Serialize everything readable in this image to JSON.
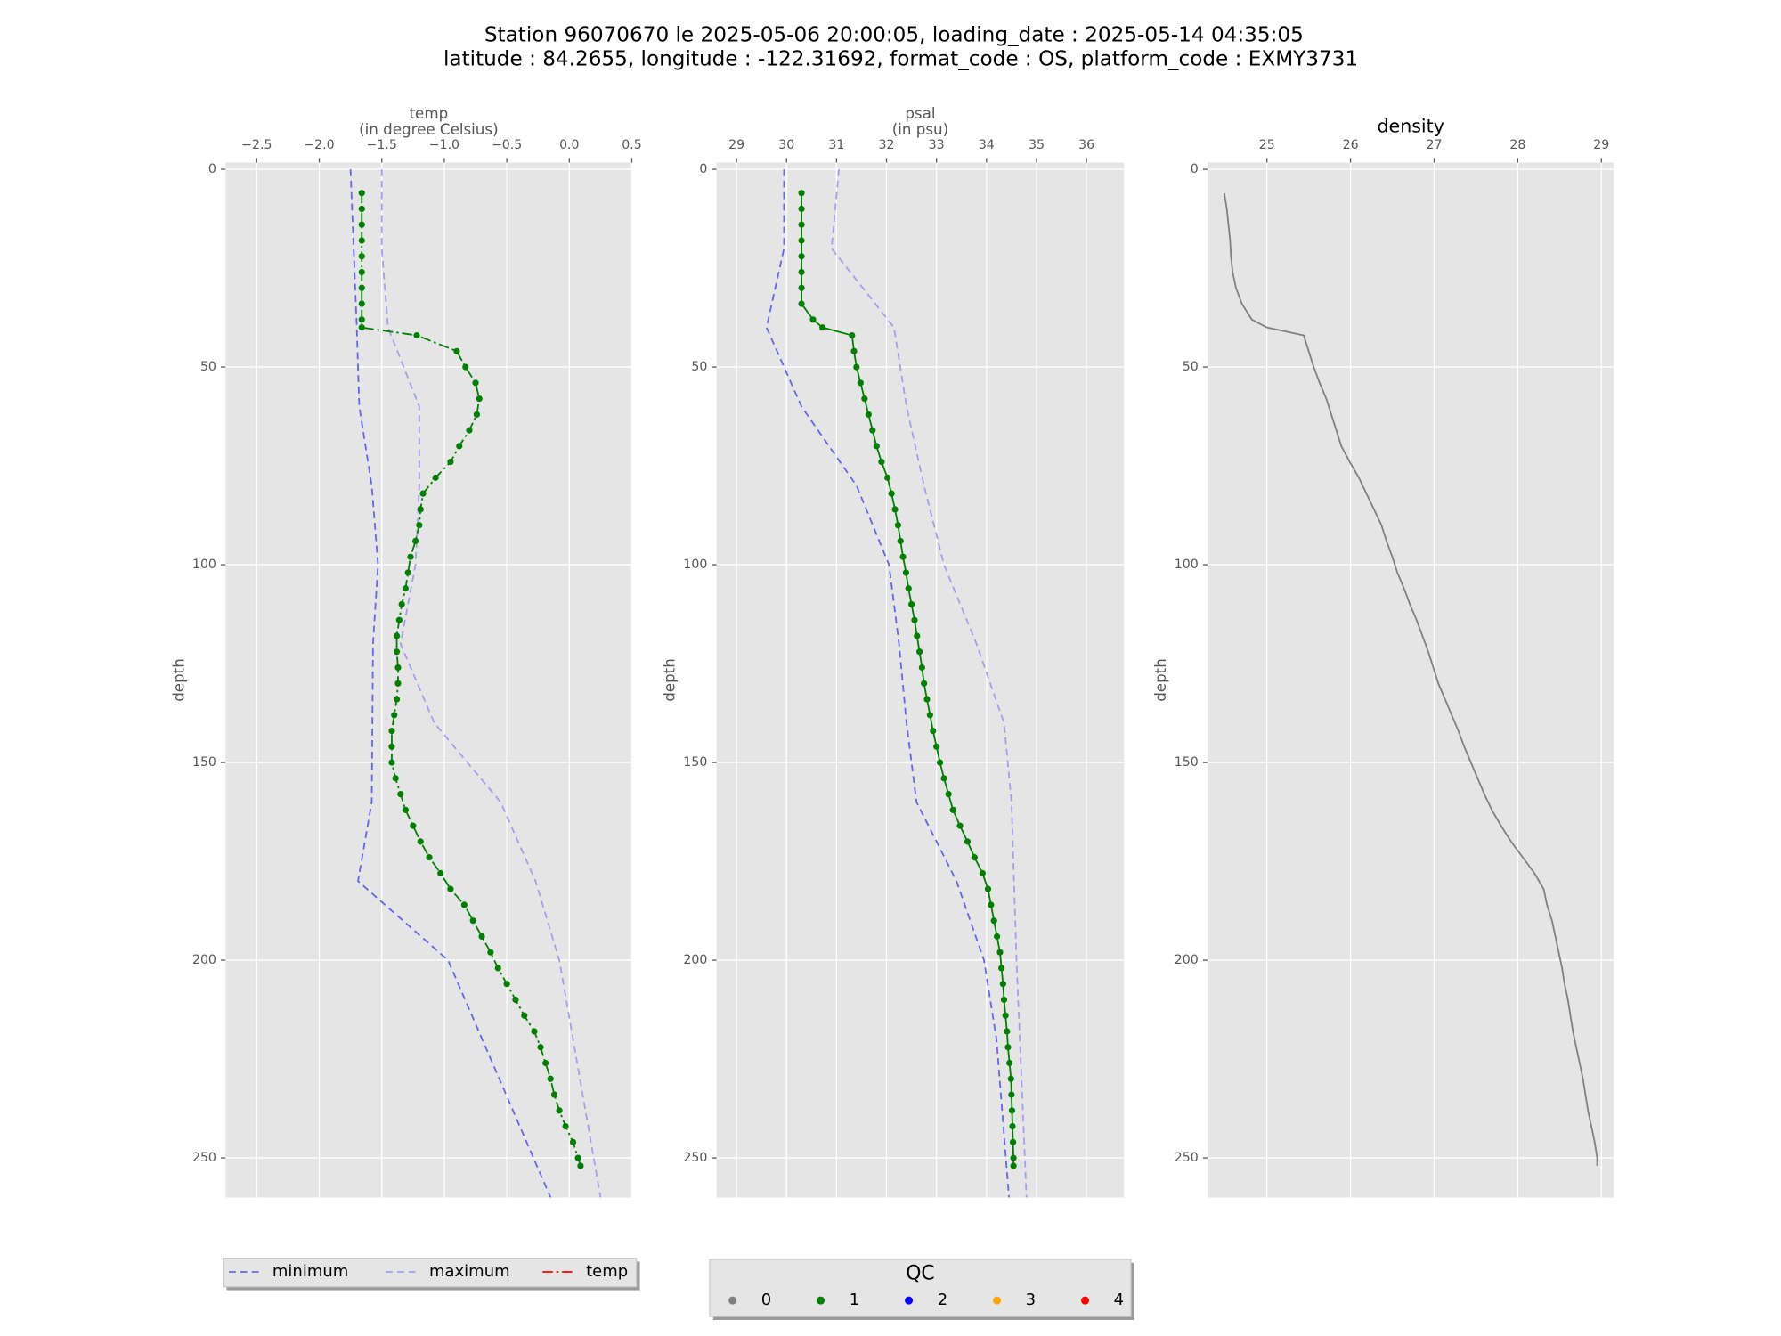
{
  "title_lines": [
    "Station 96070670 le 2025-05-06 20:00:05, loading_date : 2025-05-14 04:35:05",
    "latitude : 84.2655, longitude : -122.31692, format_code : OS, platform_code : EXMY3731"
  ],
  "chart_data": [
    {
      "type": "line",
      "xlabel": "temp",
      "xlabel_unit": "(in degree Celsius)",
      "ylabel": "depth",
      "xlim": [
        -2.75,
        0.5
      ],
      "xticks": [
        {
          "value": -2.5,
          "label": "−2.5"
        },
        {
          "value": -2,
          "label": "−2.0"
        },
        {
          "value": -1.5,
          "label": "−1.5"
        },
        {
          "value": -1,
          "label": "−1.0"
        },
        {
          "value": -0.5,
          "label": "−0.5"
        },
        {
          "value": 0,
          "label": "0.0"
        },
        0.5
      ],
      "ylim": [
        -1.7,
        260
      ],
      "yticks": [
        0,
        50,
        100,
        150,
        200,
        250
      ],
      "y_inverted": true,
      "grid": true,
      "legend": "below",
      "series": [
        {
          "name": "minimum",
          "color": "#6464ee",
          "linestyle": "dashed",
          "y": [
            0,
            40,
            60,
            80,
            100,
            120,
            160,
            180,
            200,
            260
          ],
          "values": [
            -1.75,
            -1.7,
            -1.68,
            -1.58,
            -1.53,
            -1.57,
            -1.58,
            -1.69,
            -0.97,
            -0.15
          ]
        },
        {
          "name": "maximum",
          "color": "#a0a0f0",
          "linestyle": "dashed",
          "y": [
            0,
            20,
            40,
            60,
            80,
            100,
            120,
            140,
            160,
            180,
            200,
            260
          ],
          "values": [
            -1.5,
            -1.5,
            -1.45,
            -1.2,
            -1.2,
            -1.23,
            -1.35,
            -1.08,
            -0.55,
            -0.27,
            -0.08,
            0.25
          ]
        },
        {
          "name": "temp",
          "color": "#ff0000",
          "linestyle": "dashdot",
          "marker": true,
          "qc": 1,
          "y": [
            6,
            10,
            14,
            18,
            22,
            26,
            30,
            34,
            38,
            40,
            42,
            46,
            50,
            54,
            58,
            62,
            66,
            70,
            74,
            78,
            82,
            86,
            90,
            94,
            98,
            102,
            106,
            110,
            114,
            118,
            122,
            126,
            130,
            134,
            138,
            142,
            146,
            150,
            154,
            158,
            162,
            166,
            170,
            174,
            178,
            182,
            186,
            190,
            194,
            198,
            202,
            206,
            210,
            214,
            218,
            222,
            226,
            230,
            234,
            238,
            242,
            246,
            250,
            252
          ],
          "values": [
            -1.66,
            -1.66,
            -1.66,
            -1.66,
            -1.66,
            -1.66,
            -1.66,
            -1.66,
            -1.66,
            -1.66,
            -1.22,
            -0.9,
            -0.83,
            -0.75,
            -0.72,
            -0.74,
            -0.8,
            -0.88,
            -0.95,
            -1.07,
            -1.17,
            -1.19,
            -1.2,
            -1.23,
            -1.27,
            -1.29,
            -1.31,
            -1.34,
            -1.36,
            -1.38,
            -1.38,
            -1.37,
            -1.37,
            -1.38,
            -1.4,
            -1.42,
            -1.42,
            -1.42,
            -1.39,
            -1.35,
            -1.31,
            -1.25,
            -1.19,
            -1.12,
            -1.03,
            -0.95,
            -0.84,
            -0.77,
            -0.7,
            -0.63,
            -0.57,
            -0.5,
            -0.43,
            -0.36,
            -0.28,
            -0.23,
            -0.19,
            -0.15,
            -0.12,
            -0.08,
            -0.03,
            0.03,
            0.07,
            0.09
          ]
        }
      ]
    },
    {
      "type": "line",
      "xlabel": "psal",
      "xlabel_unit": "(in psu)",
      "ylabel": "depth",
      "xlim": [
        28.6,
        36.75
      ],
      "xticks": [
        29,
        30,
        31,
        32,
        33,
        34,
        35,
        36
      ],
      "ylim": [
        -1.7,
        260
      ],
      "yticks": [
        0,
        50,
        100,
        150,
        200,
        250
      ],
      "y_inverted": true,
      "grid": true,
      "series": [
        {
          "color": "#6464ee",
          "linestyle": "dashed",
          "y": [
            0,
            20,
            40,
            60,
            80,
            100,
            120,
            140,
            160,
            180,
            200,
            220,
            260
          ],
          "values": [
            29.95,
            29.95,
            29.6,
            30.3,
            31.4,
            32.05,
            32.25,
            32.4,
            32.6,
            33.4,
            33.95,
            34.2,
            34.45
          ]
        },
        {
          "color": "#a0a0f0",
          "linestyle": "dashed",
          "y": [
            0,
            20,
            40,
            60,
            80,
            100,
            120,
            140,
            160,
            200,
            260
          ],
          "values": [
            31.05,
            30.9,
            32.15,
            32.4,
            32.75,
            33.15,
            33.8,
            34.35,
            34.5,
            34.6,
            34.8
          ]
        },
        {
          "color": "#008000",
          "linestyle": "solid",
          "marker": true,
          "qc": 1,
          "y": [
            6,
            10,
            14,
            18,
            22,
            26,
            30,
            34,
            38,
            40,
            42,
            46,
            50,
            54,
            58,
            62,
            66,
            70,
            74,
            78,
            82,
            86,
            90,
            94,
            98,
            102,
            106,
            110,
            114,
            118,
            122,
            126,
            130,
            134,
            138,
            142,
            146,
            150,
            154,
            158,
            162,
            166,
            170,
            174,
            178,
            182,
            186,
            190,
            194,
            198,
            202,
            206,
            210,
            214,
            218,
            222,
            226,
            230,
            234,
            238,
            242,
            246,
            250,
            252
          ],
          "values": [
            30.3,
            30.3,
            30.3,
            30.3,
            30.3,
            30.3,
            30.3,
            30.3,
            30.53,
            30.72,
            31.31,
            31.35,
            31.4,
            31.48,
            31.56,
            31.64,
            31.72,
            31.8,
            31.9,
            32.02,
            32.1,
            32.17,
            32.23,
            32.28,
            32.33,
            32.39,
            32.44,
            32.5,
            32.56,
            32.61,
            32.66,
            32.71,
            32.75,
            32.81,
            32.87,
            32.93,
            33.0,
            33.07,
            33.15,
            33.24,
            33.33,
            33.47,
            33.62,
            33.76,
            33.92,
            34.03,
            34.09,
            34.15,
            34.21,
            34.27,
            34.3,
            34.33,
            34.35,
            34.38,
            34.41,
            34.43,
            34.46,
            34.49,
            34.5,
            34.51,
            34.52,
            34.53,
            34.54,
            34.54
          ]
        }
      ]
    },
    {
      "type": "line",
      "title": "density",
      "ylabel": "depth",
      "xlim": [
        24.29,
        29.15
      ],
      "xticks": [
        25,
        26,
        27,
        28,
        29
      ],
      "ylim": [
        -1.7,
        260
      ],
      "yticks": [
        0,
        50,
        100,
        150,
        200,
        250
      ],
      "y_inverted": true,
      "grid": true,
      "series": [
        {
          "color": "#808080",
          "linestyle": "solid",
          "y": [
            6,
            10,
            14,
            18,
            22,
            26,
            30,
            34,
            38,
            40,
            42,
            46,
            50,
            54,
            58,
            62,
            66,
            70,
            74,
            78,
            82,
            86,
            90,
            94,
            98,
            102,
            106,
            110,
            114,
            118,
            122,
            126,
            130,
            134,
            138,
            142,
            146,
            150,
            154,
            158,
            162,
            166,
            170,
            174,
            178,
            182,
            186,
            190,
            194,
            198,
            202,
            206,
            210,
            214,
            218,
            222,
            226,
            230,
            234,
            238,
            242,
            246,
            250,
            252
          ],
          "values": [
            24.49,
            24.52,
            24.54,
            24.56,
            24.57,
            24.59,
            24.63,
            24.7,
            24.82,
            25.0,
            25.44,
            25.5,
            25.56,
            25.63,
            25.71,
            25.77,
            25.83,
            25.89,
            25.99,
            26.1,
            26.19,
            26.28,
            26.37,
            26.43,
            26.5,
            26.56,
            26.64,
            26.71,
            26.79,
            26.86,
            26.93,
            26.99,
            27.05,
            27.13,
            27.21,
            27.29,
            27.36,
            27.44,
            27.52,
            27.6,
            27.69,
            27.8,
            27.92,
            28.06,
            28.2,
            28.31,
            28.35,
            28.41,
            28.45,
            28.49,
            28.53,
            28.56,
            28.6,
            28.63,
            28.66,
            28.7,
            28.74,
            28.78,
            28.81,
            28.84,
            28.88,
            28.92,
            28.95,
            28.95
          ]
        }
      ]
    }
  ],
  "qc_legend": {
    "title": "QC",
    "flags": [
      "0",
      "1",
      "2",
      "3",
      "4"
    ],
    "colors": [
      "#808080",
      "#008000",
      "#0000ff",
      "#ffa500",
      "#ff0000"
    ]
  }
}
